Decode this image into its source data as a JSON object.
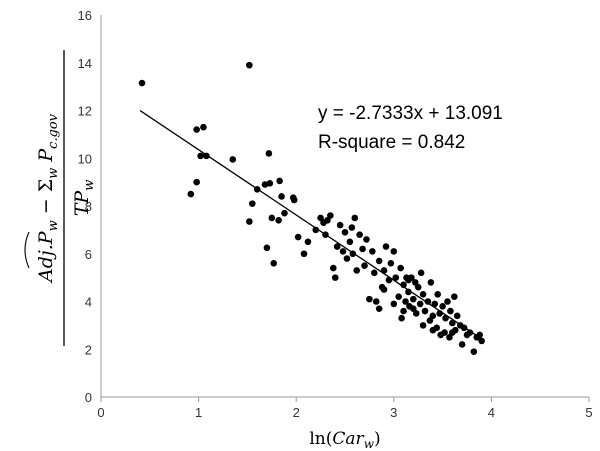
{
  "chart_data": {
    "type": "scatter",
    "title": "",
    "xlabel_parts": {
      "prefix": "ln(",
      "var": "Car",
      "sub": "w",
      "suffix": ")"
    },
    "ylabel_parts": {
      "num_a": "Adj.P",
      "num_a_sub": "w",
      "minus": " − ",
      "sum": "Σ",
      "sum_sub": "w",
      "num_b": " P",
      "num_b_sub": "c.gov",
      "den": "TP",
      "den_sub": "w"
    },
    "xlim": [
      0,
      5
    ],
    "ylim": [
      0,
      16
    ],
    "xticks": [
      "0",
      "1",
      "2",
      "3",
      "4",
      "5"
    ],
    "yticks": [
      "0",
      "2",
      "4",
      "6",
      "8",
      "10",
      "12",
      "14",
      "16"
    ],
    "grid": false,
    "trendline": {
      "slope": -2.7333,
      "intercept": 13.091,
      "x_range": [
        0.4,
        3.9
      ]
    },
    "annotations": [
      "y = -2.7333x + 13.091",
      "R-square = 0.842"
    ],
    "series": [
      {
        "marker_color": "#000000",
        "points": [
          [
            0.42,
            13.15
          ],
          [
            1.52,
            13.9
          ],
          [
            0.92,
            8.5
          ],
          [
            0.98,
            9.0
          ],
          [
            0.98,
            11.2
          ],
          [
            1.02,
            10.1
          ],
          [
            1.05,
            11.3
          ],
          [
            1.08,
            10.1
          ],
          [
            1.35,
            9.95
          ],
          [
            1.52,
            7.35
          ],
          [
            1.55,
            8.1
          ],
          [
            1.6,
            8.7
          ],
          [
            1.68,
            8.9
          ],
          [
            1.7,
            6.25
          ],
          [
            1.72,
            10.2
          ],
          [
            1.73,
            8.95
          ],
          [
            1.75,
            7.5
          ],
          [
            1.77,
            5.6
          ],
          [
            1.82,
            7.4
          ],
          [
            1.83,
            9.05
          ],
          [
            1.85,
            8.4
          ],
          [
            1.88,
            7.7
          ],
          [
            1.97,
            8.35
          ],
          [
            1.98,
            8.25
          ],
          [
            2.02,
            6.7
          ],
          [
            2.08,
            6.0
          ],
          [
            2.12,
            6.5
          ],
          [
            2.2,
            7.0
          ],
          [
            2.25,
            7.5
          ],
          [
            2.28,
            7.3
          ],
          [
            2.3,
            6.8
          ],
          [
            2.32,
            7.4
          ],
          [
            2.35,
            7.6
          ],
          [
            2.38,
            5.4
          ],
          [
            2.4,
            5.0
          ],
          [
            2.42,
            6.3
          ],
          [
            2.45,
            7.2
          ],
          [
            2.48,
            6.1
          ],
          [
            2.5,
            6.9
          ],
          [
            2.52,
            5.8
          ],
          [
            2.55,
            6.5
          ],
          [
            2.57,
            7.1
          ],
          [
            2.58,
            6.0
          ],
          [
            2.6,
            7.5
          ],
          [
            2.62,
            5.3
          ],
          [
            2.65,
            6.8
          ],
          [
            2.68,
            6.2
          ],
          [
            2.7,
            5.5
          ],
          [
            2.72,
            6.6
          ],
          [
            2.75,
            4.1
          ],
          [
            2.78,
            6.1
          ],
          [
            2.8,
            5.2
          ],
          [
            2.82,
            4.0
          ],
          [
            2.85,
            5.7
          ],
          [
            2.88,
            4.6
          ],
          [
            2.9,
            5.3
          ],
          [
            2.92,
            6.3
          ],
          [
            2.95,
            4.9
          ],
          [
            2.97,
            5.6
          ],
          [
            3.0,
            6.1
          ],
          [
            3.02,
            5.0
          ],
          [
            3.05,
            4.2
          ],
          [
            3.07,
            5.4
          ],
          [
            3.08,
            3.3
          ],
          [
            3.1,
            4.7
          ],
          [
            3.12,
            4.0
          ],
          [
            3.13,
            5.0
          ],
          [
            3.15,
            4.4
          ],
          [
            3.16,
            3.8
          ],
          [
            3.18,
            5.0
          ],
          [
            3.2,
            4.1
          ],
          [
            3.22,
            4.8
          ],
          [
            3.23,
            3.5
          ],
          [
            3.25,
            4.6
          ],
          [
            3.27,
            3.9
          ],
          [
            3.28,
            5.2
          ],
          [
            3.3,
            4.3
          ],
          [
            3.32,
            3.6
          ],
          [
            3.35,
            4.0
          ],
          [
            3.37,
            3.2
          ],
          [
            3.38,
            4.8
          ],
          [
            3.4,
            3.4
          ],
          [
            3.42,
            3.9
          ],
          [
            3.44,
            2.9
          ],
          [
            3.45,
            4.3
          ],
          [
            3.47,
            3.5
          ],
          [
            3.48,
            2.6
          ],
          [
            3.5,
            3.8
          ],
          [
            3.52,
            2.7
          ],
          [
            3.53,
            3.3
          ],
          [
            3.55,
            4.0
          ],
          [
            3.57,
            2.5
          ],
          [
            3.58,
            3.6
          ],
          [
            3.6,
            3.1
          ],
          [
            3.62,
            4.2
          ],
          [
            3.63,
            2.8
          ],
          [
            3.65,
            3.4
          ],
          [
            3.68,
            3.0
          ],
          [
            3.7,
            2.2
          ],
          [
            3.72,
            2.9
          ],
          [
            3.75,
            2.6
          ],
          [
            3.78,
            2.7
          ],
          [
            3.82,
            1.9
          ],
          [
            3.85,
            2.5
          ],
          [
            3.88,
            2.6
          ],
          [
            3.9,
            2.35
          ],
          [
            3.0,
            3.9
          ],
          [
            3.1,
            3.6
          ],
          [
            3.2,
            3.7
          ],
          [
            3.3,
            3.0
          ],
          [
            3.4,
            2.8
          ],
          [
            3.6,
            2.7
          ],
          [
            2.9,
            4.5
          ],
          [
            3.15,
            4.9
          ],
          [
            2.85,
            3.7
          ]
        ]
      }
    ]
  }
}
